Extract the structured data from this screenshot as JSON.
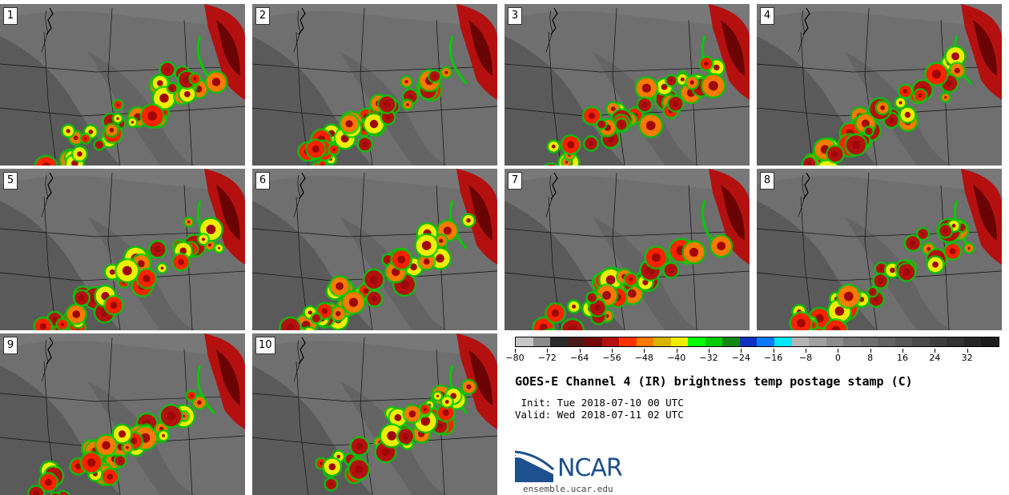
{
  "panels": [
    {
      "label": "1"
    },
    {
      "label": "2"
    },
    {
      "label": "3"
    },
    {
      "label": "4"
    },
    {
      "label": "5"
    },
    {
      "label": "6"
    },
    {
      "label": "7"
    },
    {
      "label": "8"
    },
    {
      "label": "9"
    },
    {
      "label": "10"
    }
  ],
  "colorbar": {
    "colors": [
      "#c6c6c6",
      "#8a8a8a",
      "#2a2a2a",
      "#4a1a1a",
      "#720808",
      "#b51010",
      "#ff3300",
      "#ff7a00",
      "#d9b300",
      "#eeee00",
      "#00ff00",
      "#00cc00",
      "#118811",
      "#1030c0",
      "#0a78ff",
      "#00e8ff",
      "#b4b4b4",
      "#a0a0a0",
      "#8c8c8c",
      "#7a7a7a",
      "#6e6e6e",
      "#626262",
      "#565656",
      "#4a4a4a",
      "#3e3e3e",
      "#323232",
      "#262626",
      "#1c1c1c"
    ],
    "tick_values": [
      "-80",
      "-72",
      "-64",
      "-56",
      "-48",
      "-40",
      "-32",
      "-24",
      "-16",
      "-8",
      "0",
      "8",
      "16",
      "24",
      "32"
    ]
  },
  "title": "GOES-E Channel 4 (IR) brightness temp postage stamp (C)",
  "init": " Init: Tue 2018-07-10 00 UTC",
  "valid": "Valid: Wed 2018-07-11 02 UTC",
  "logo": {
    "text": "NCAR",
    "url": "ensemble.ucar.edu"
  }
}
